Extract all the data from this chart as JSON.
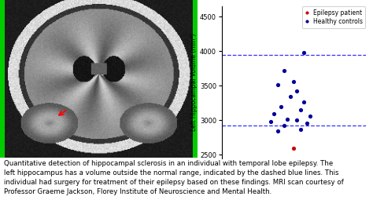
{
  "healthy_y": [
    2850,
    2870,
    2920,
    2960,
    2980,
    3000,
    3020,
    3060,
    3100,
    3150,
    3200,
    3260,
    3350,
    3420,
    3510,
    3560,
    3720,
    3980
  ],
  "healthy_x": [
    0.95,
    1.02,
    0.97,
    1.04,
    0.93,
    1.01,
    0.98,
    1.05,
    0.94,
    1.02,
    0.96,
    1.03,
    0.99,
    1.01,
    0.95,
    1.0,
    0.97,
    1.03
  ],
  "healthy_color": "#000099",
  "epilepsy_x": [
    1.0
  ],
  "epilepsy_y": [
    2590
  ],
  "epilepsy_color": "#CC0000",
  "dashed_lines": [
    2920,
    3950
  ],
  "dashed_color": "#1a1aff",
  "ylim": [
    2450,
    4650
  ],
  "yticks": [
    2500,
    3000,
    3500,
    4000,
    4500
  ],
  "ylabel": "Left Hippocampal Volume (mm³)",
  "legend_epilepsy_label": "Epilepsy patient",
  "legend_healthy_label": "Healthy controls",
  "caption": "Quantitative detection of hippocampal sclerosis in an individual with temporal lobe epilepsy. The\nleft hippocampus has a volume outside the normal range, indicated by the dashed blue lines. This\nindividual had surgery for treatment of their epilepsy based on these findings. MRI scan courtesy of\nProfessor Graeme Jackson, Florey Institute of Neuroscience and Mental Health.",
  "caption_fontsize": 6.2,
  "bg_color": "#ffffff"
}
